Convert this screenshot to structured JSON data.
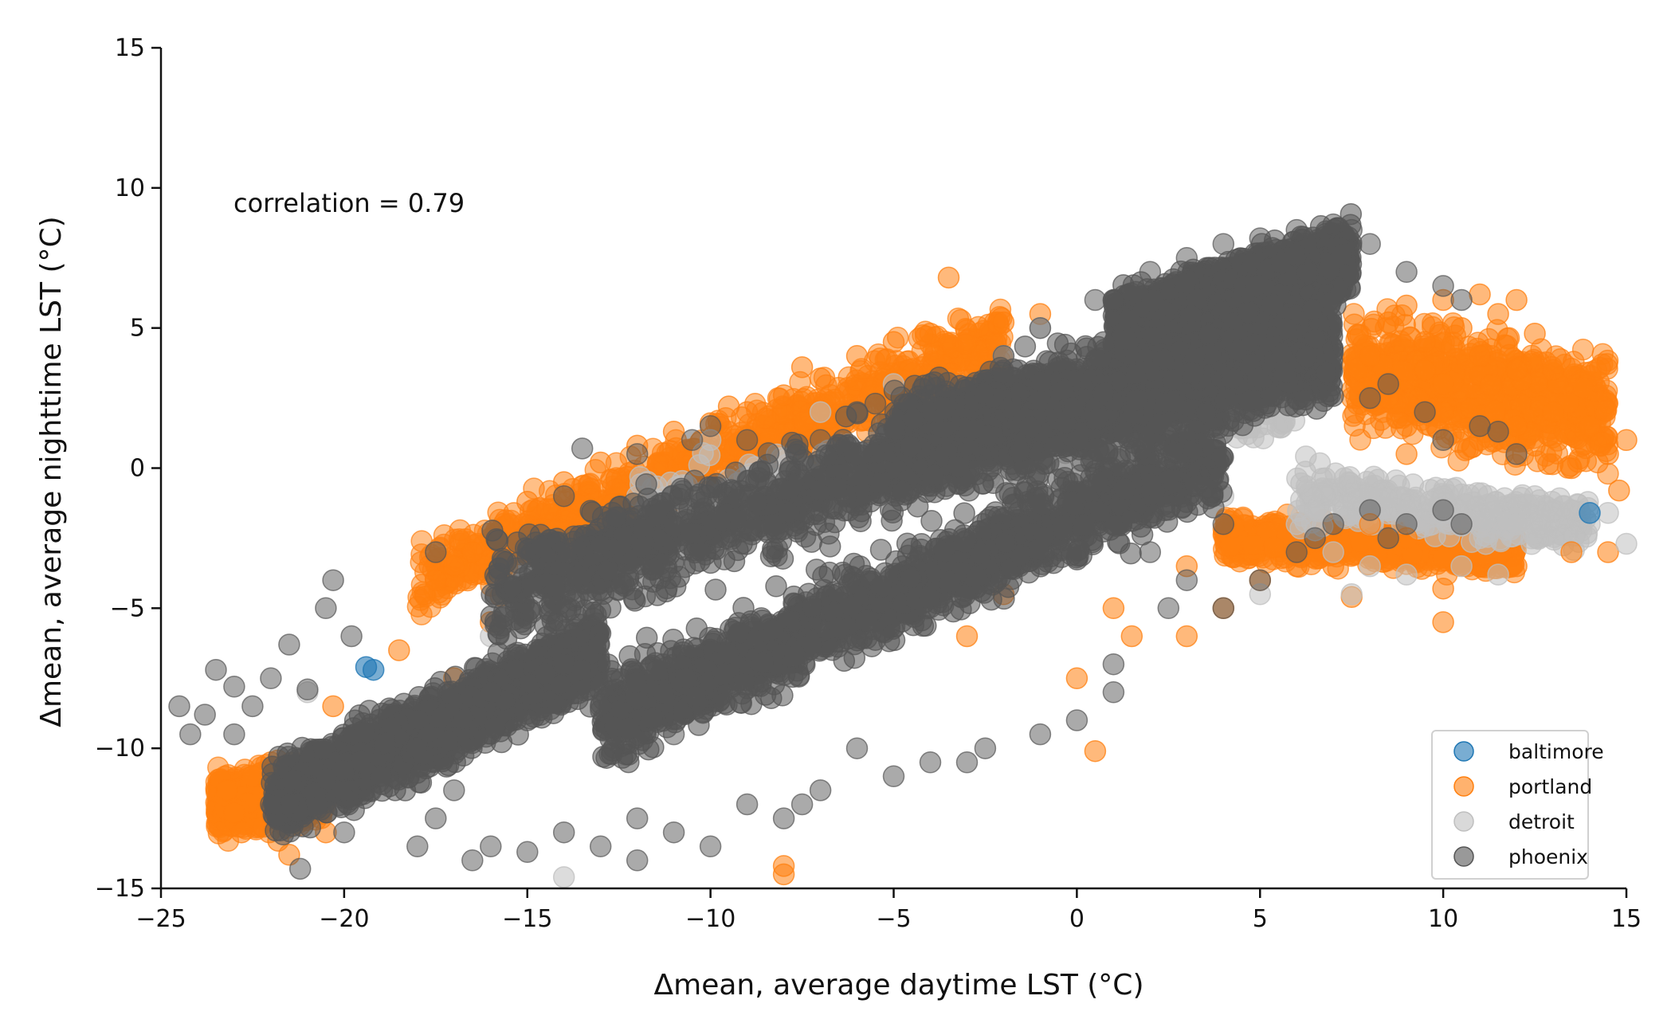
{
  "chart_data": {
    "type": "scatter",
    "title": "",
    "xlabel": "Δmean, average daytime LST (°C)",
    "ylabel": "Δmean, average nighttime LST (°C)",
    "xlim": [
      -25,
      15
    ],
    "ylim": [
      -15,
      15
    ],
    "x_ticks": [
      -25,
      -20,
      -15,
      -10,
      -5,
      0,
      5,
      10,
      15
    ],
    "y_ticks": [
      -15,
      -10,
      -5,
      0,
      5,
      10,
      15
    ],
    "x_tick_labels": [
      "−25",
      "−20",
      "−15",
      "−10",
      "−5",
      "0",
      "5",
      "10",
      "15"
    ],
    "y_tick_labels": [
      "−15",
      "−10",
      "−5",
      "0",
      "5",
      "10",
      "15"
    ],
    "grid": false,
    "legend_position": "bottom-right",
    "annotations": [
      {
        "text": "correlation = 0.79"
      }
    ],
    "series": [
      {
        "name": "baltimore",
        "color": "#1f77b4",
        "points": [
          [
            -19.4,
            -7.1
          ],
          [
            -19.2,
            -7.2
          ],
          [
            14.0,
            -1.6
          ]
        ]
      },
      {
        "name": "portland",
        "color": "#ff7f0e",
        "points": [
          [
            -23.2,
            -11.5
          ],
          [
            -23.0,
            -12.3
          ],
          [
            -22.8,
            -13.0
          ],
          [
            -22.5,
            -11.0
          ],
          [
            -22.2,
            -12.8
          ],
          [
            -21.8,
            -13.3
          ],
          [
            -21.5,
            -12.0
          ],
          [
            -22.0,
            -10.5
          ],
          [
            -21.0,
            -11.8
          ],
          [
            -17.8,
            -4.5
          ],
          [
            -17.5,
            -4.0
          ],
          [
            -17.0,
            -3.5
          ],
          [
            -16.5,
            -3.0
          ],
          [
            -16.0,
            -2.5
          ],
          [
            -15.5,
            -2.0
          ],
          [
            -15.0,
            -1.2
          ],
          [
            -14.0,
            -0.5
          ],
          [
            -13.0,
            0.2
          ],
          [
            -12.0,
            0.8
          ],
          [
            -11.0,
            1.3
          ],
          [
            -10.0,
            1.6
          ],
          [
            -9.0,
            2.0
          ],
          [
            -8.0,
            2.6
          ],
          [
            -7.0,
            3.2
          ],
          [
            -6.0,
            4.0
          ],
          [
            -5.0,
            4.5
          ],
          [
            -4.0,
            4.8
          ],
          [
            -3.5,
            6.8
          ],
          [
            -2.0,
            5.2
          ],
          [
            -1.0,
            5.5
          ],
          [
            -9.5,
            2.2
          ],
          [
            -7.5,
            3.6
          ],
          [
            -18.5,
            -6.5
          ],
          [
            -17.0,
            -7.5
          ],
          [
            -20.3,
            -8.5
          ],
          [
            -20.5,
            -13.0
          ],
          [
            -21.5,
            -13.8
          ],
          [
            -16.0,
            -5.5
          ],
          [
            -8.0,
            -14.2
          ],
          [
            -8.0,
            -14.5
          ],
          [
            -2.0,
            -4.5
          ],
          [
            -3.0,
            -6.0
          ],
          [
            0.0,
            -7.5
          ],
          [
            0.5,
            -10.1
          ],
          [
            1.5,
            -6.0
          ],
          [
            3.0,
            -6.0
          ],
          [
            4.0,
            -5.0
          ],
          [
            8.0,
            4.0
          ],
          [
            8.5,
            5.2
          ],
          [
            9.0,
            5.8
          ],
          [
            9.5,
            4.5
          ],
          [
            10.0,
            6.0
          ],
          [
            10.5,
            5.0
          ],
          [
            11.0,
            6.2
          ],
          [
            11.5,
            5.5
          ],
          [
            12.0,
            6.0
          ],
          [
            12.5,
            4.8
          ],
          [
            13.0,
            3.5
          ],
          [
            8.5,
            2.5
          ],
          [
            9.0,
            1.5
          ],
          [
            10.0,
            2.0
          ],
          [
            11.0,
            1.0
          ],
          [
            12.0,
            1.5
          ],
          [
            13.0,
            2.0
          ],
          [
            14.0,
            1.5
          ],
          [
            15.0,
            1.0
          ],
          [
            14.5,
            0.5
          ],
          [
            13.5,
            0.0
          ],
          [
            12.5,
            0.8
          ],
          [
            10.0,
            3.0
          ],
          [
            11.0,
            4.0
          ],
          [
            12.0,
            3.5
          ],
          [
            9.5,
            3.5
          ],
          [
            8.0,
            -2.0
          ],
          [
            9.0,
            -2.5
          ],
          [
            10.0,
            -3.2
          ],
          [
            10.0,
            -4.3
          ],
          [
            10.0,
            -5.5
          ],
          [
            12.0,
            -3.5
          ],
          [
            13.5,
            -3.0
          ],
          [
            14.5,
            -3.0
          ],
          [
            5.0,
            -4.0
          ],
          [
            6.0,
            -3.5
          ],
          [
            7.0,
            -3.5
          ],
          [
            7.5,
            -4.6
          ],
          [
            3.0,
            -3.5
          ],
          [
            1.0,
            -5.0
          ],
          [
            14.8,
            -0.8
          ],
          [
            9.0,
            0.5
          ]
        ]
      },
      {
        "name": "detroit",
        "color": "#bfbfbf",
        "points": [
          [
            -14.0,
            -14.6
          ],
          [
            -21.0,
            -8.0
          ],
          [
            -16.0,
            -6.0
          ],
          [
            -12.0,
            -1.0
          ],
          [
            -10.0,
            1.0
          ],
          [
            -7.0,
            2.0
          ],
          [
            -5.0,
            3.0
          ],
          [
            -2.0,
            4.0
          ],
          [
            -1.0,
            5.0
          ],
          [
            1.0,
            -2.0
          ],
          [
            4.0,
            -1.0
          ],
          [
            6.0,
            -2.0
          ],
          [
            8.0,
            -1.0
          ],
          [
            9.0,
            -1.5
          ],
          [
            10.0,
            -1.0
          ],
          [
            11.0,
            -2.5
          ],
          [
            12.0,
            -2.0
          ],
          [
            13.0,
            -1.5
          ],
          [
            14.0,
            -2.0
          ],
          [
            15.0,
            -2.7
          ],
          [
            7.0,
            -3.0
          ],
          [
            8.0,
            -3.5
          ],
          [
            9.0,
            -3.8
          ],
          [
            5.0,
            -4.5
          ],
          [
            7.5,
            -4.5
          ],
          [
            10.5,
            -3.5
          ],
          [
            11.5,
            -3.8
          ],
          [
            12.5,
            -1.0
          ],
          [
            13.5,
            -1.5
          ],
          [
            -6.0,
            0.0
          ],
          [
            -9.0,
            -1.0
          ],
          [
            -3.0,
            2.0
          ],
          [
            2.0,
            0.0
          ],
          [
            6.5,
            -1.5
          ],
          [
            -19.0,
            -9.0
          ],
          [
            14.5,
            -1.6
          ]
        ]
      },
      {
        "name": "phoenix",
        "color": "#555555",
        "points": [
          [
            -24.5,
            -8.5
          ],
          [
            -24.2,
            -9.5
          ],
          [
            -23.8,
            -8.8
          ],
          [
            -23.5,
            -7.2
          ],
          [
            -23.0,
            -7.8
          ],
          [
            -22.5,
            -8.5
          ],
          [
            -22.0,
            -7.5
          ],
          [
            -21.5,
            -6.3
          ],
          [
            -21.0,
            -7.9
          ],
          [
            -20.5,
            -5.0
          ],
          [
            -20.3,
            -4.0
          ],
          [
            -19.8,
            -6.0
          ],
          [
            -21.2,
            -14.3
          ],
          [
            -20.0,
            -13.0
          ],
          [
            -18.0,
            -13.5
          ],
          [
            -17.5,
            -12.5
          ],
          [
            -16.0,
            -13.5
          ],
          [
            -15.0,
            -13.7
          ],
          [
            -14.0,
            -13.0
          ],
          [
            -13.0,
            -13.5
          ],
          [
            -12.0,
            -12.5
          ],
          [
            -11.0,
            -13.0
          ],
          [
            -10.0,
            -13.5
          ],
          [
            -9.0,
            -12.0
          ],
          [
            -8.0,
            -12.5
          ],
          [
            -7.0,
            -11.5
          ],
          [
            -17.5,
            -3.0
          ],
          [
            -14.0,
            -1.0
          ],
          [
            -13.5,
            0.7
          ],
          [
            -12.0,
            0.5
          ],
          [
            -10.5,
            1.0
          ],
          [
            -10.0,
            1.5
          ],
          [
            -9.0,
            1.0
          ],
          [
            -7.0,
            1.0
          ],
          [
            -6.0,
            2.0
          ],
          [
            -5.5,
            2.3
          ],
          [
            -4.0,
            3.0
          ],
          [
            -2.0,
            4.0
          ],
          [
            -1.0,
            5.0
          ],
          [
            0.5,
            6.0
          ],
          [
            1.0,
            6.0
          ],
          [
            2.0,
            7.0
          ],
          [
            3.0,
            7.5
          ],
          [
            4.0,
            8.0
          ],
          [
            5.0,
            8.2
          ],
          [
            6.0,
            8.5
          ],
          [
            7.0,
            8.7
          ],
          [
            7.5,
            8.5
          ],
          [
            8.0,
            8.0
          ],
          [
            9.0,
            7.0
          ],
          [
            10.0,
            6.5
          ],
          [
            10.5,
            6.0
          ],
          [
            8.0,
            2.5
          ],
          [
            9.5,
            2.0
          ],
          [
            10.0,
            1.0
          ],
          [
            11.0,
            1.5
          ],
          [
            11.5,
            1.3
          ],
          [
            8.5,
            3.0
          ],
          [
            12.0,
            0.5
          ],
          [
            2.0,
            -3.0
          ],
          [
            3.0,
            -4.0
          ],
          [
            4.0,
            -5.0
          ],
          [
            5.0,
            -4.0
          ],
          [
            6.0,
            -3.0
          ],
          [
            7.0,
            -2.0
          ],
          [
            8.0,
            -1.5
          ],
          [
            9.0,
            -2.0
          ],
          [
            10.0,
            -1.5
          ],
          [
            10.5,
            -2.0
          ],
          [
            8.5,
            -2.5
          ],
          [
            6.5,
            -2.5
          ],
          [
            4.0,
            -2.0
          ],
          [
            2.5,
            -5.0
          ],
          [
            1.0,
            -7.0
          ],
          [
            -2.5,
            -10.0
          ],
          [
            -4.0,
            -10.5
          ],
          [
            -6.0,
            -10.0
          ],
          [
            0.0,
            -9.0
          ],
          [
            1.0,
            -8.0
          ],
          [
            -1.0,
            -9.5
          ],
          [
            -3.0,
            -10.5
          ],
          [
            -5.0,
            -11.0
          ],
          [
            -7.5,
            -12.0
          ],
          [
            -12.0,
            -14.0
          ],
          [
            -16.5,
            -14.0
          ],
          [
            -14.0,
            -7.0
          ],
          [
            -16.0,
            -8.0
          ],
          [
            -15.0,
            -9.0
          ],
          [
            -13.0,
            -8.5
          ],
          [
            -11.0,
            -9.5
          ],
          [
            -18.0,
            -10.0
          ],
          [
            -19.0,
            -11.0
          ],
          [
            -17.0,
            -11.5
          ],
          [
            -22.0,
            -12.0
          ],
          [
            -23.0,
            -9.5
          ]
        ],
        "bands": [
          {
            "x_range": [
              -22,
              -13
            ],
            "y_mean_at_start": -12.0,
            "y_mean_at_end": -6.5,
            "spread": 1.4,
            "note": "dense diagonal cloud"
          },
          {
            "x_range": [
              -16,
              7
            ],
            "y_mean_at_start": -4.5,
            "y_mean_at_end": 5.0,
            "spread": 1.8,
            "note": "dense upper diagonal cloud"
          },
          {
            "x_range": [
              -13,
              4
            ],
            "y_mean_at_start": -9.0,
            "y_mean_at_end": 0.5,
            "spread": 1.6,
            "note": "dense lower diagonal cloud"
          },
          {
            "x_range": [
              1,
              7.5
            ],
            "y_mean_at_start": 5.0,
            "y_mean_at_end": 7.5,
            "spread": 1.2,
            "note": "dense top cluster"
          },
          {
            "x_range": [
              -5,
              7
            ],
            "y_mean_at_start": 1.0,
            "y_mean_at_end": 4.0,
            "spread": 1.8,
            "note": "dense central cluster"
          }
        ]
      }
    ],
    "background_bands": {
      "portland": [
        {
          "x_range": [
            -23.5,
            -20.5
          ],
          "y_mean_at_start": -12.0,
          "y_mean_at_end": -11.5,
          "spread": 1.0
        },
        {
          "x_range": [
            -18,
            -2
          ],
          "y_mean_at_start": -4.0,
          "y_mean_at_end": 4.5,
          "spread": 1.3
        },
        {
          "x_range": [
            7.5,
            14.5
          ],
          "y_mean_at_start": 3.5,
          "y_mean_at_end": 2.0,
          "spread": 2.0
        },
        {
          "x_range": [
            4,
            12
          ],
          "y_mean_at_start": -2.5,
          "y_mean_at_end": -3.0,
          "spread": 0.7
        }
      ],
      "detroit": [
        {
          "x_range": [
            -12,
            6
          ],
          "y_mean_at_start": -1.0,
          "y_mean_at_end": 2.0,
          "spread": 1.0
        },
        {
          "x_range": [
            6,
            14
          ],
          "y_mean_at_start": -1.0,
          "y_mean_at_end": -2.0,
          "spread": 1.0
        }
      ]
    }
  }
}
